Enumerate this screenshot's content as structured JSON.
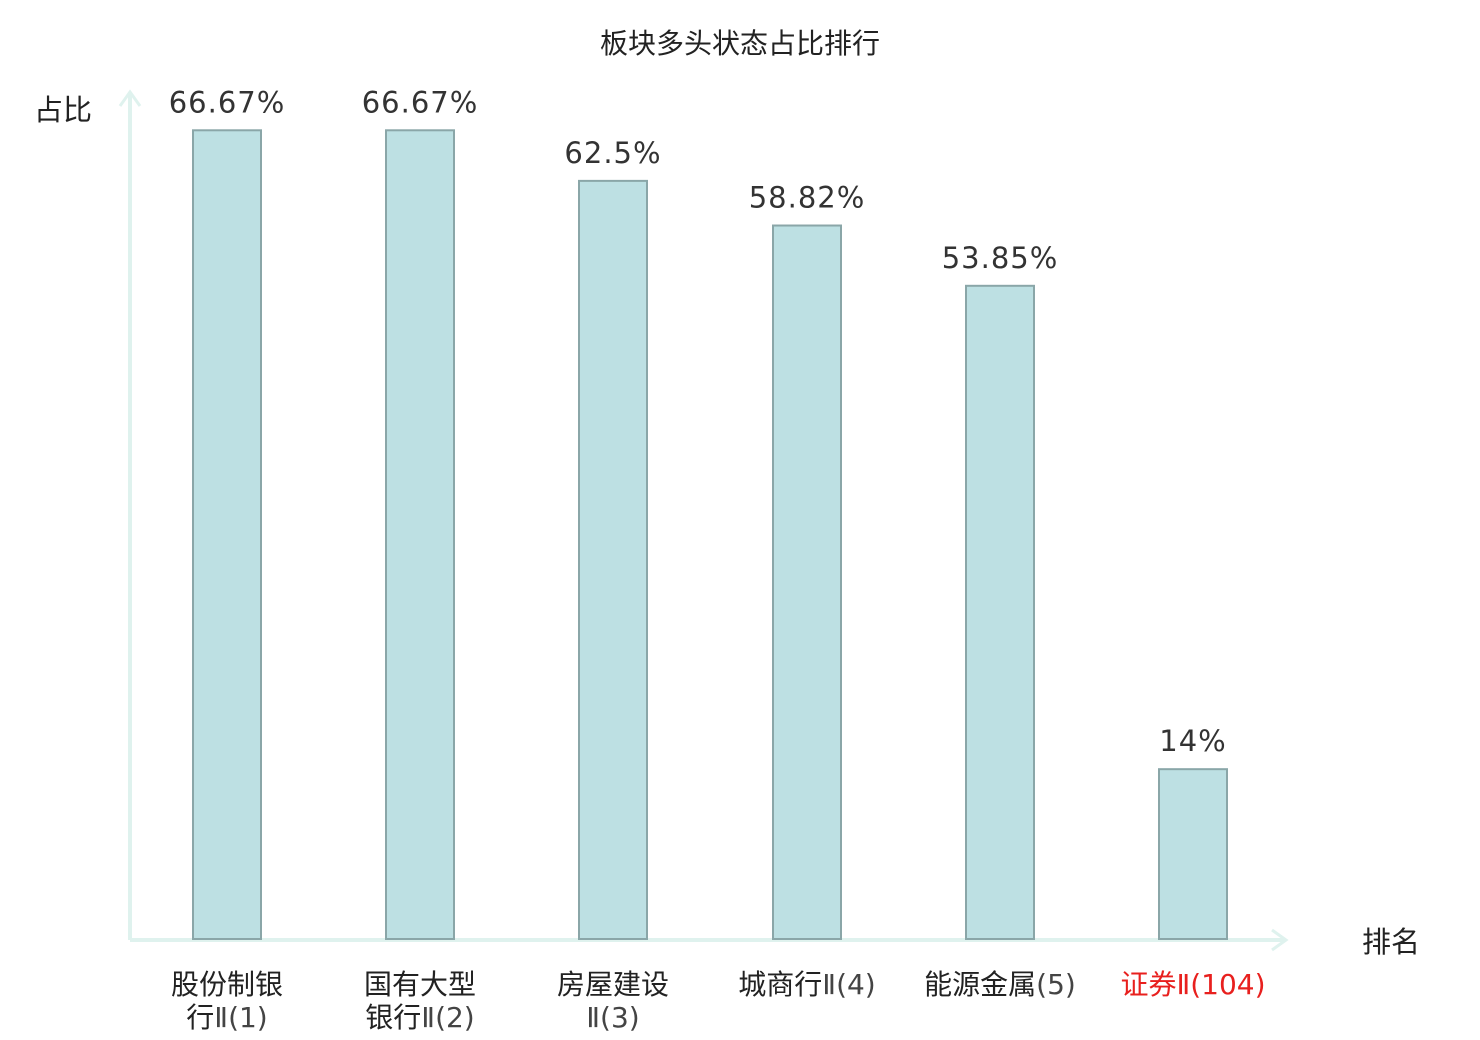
{
  "chart_data": {
    "type": "bar",
    "title": "板块多头状态占比排行",
    "ylabel": "占比",
    "xlabel": "排名",
    "ylim": [
      0,
      70
    ],
    "grid": false,
    "value_suffix": "%",
    "categories": [
      {
        "lines": [
          {
            "main": "股份制银",
            "suffix": ""
          },
          {
            "main": "行",
            "suffix": "Ⅱ(1)"
          }
        ]
      },
      {
        "lines": [
          {
            "main": "国有大型",
            "suffix": ""
          },
          {
            "main": "银行",
            "suffix": "Ⅱ(2)"
          }
        ]
      },
      {
        "lines": [
          {
            "main": "房屋建设",
            "suffix": ""
          },
          {
            "main": "",
            "suffix": "Ⅱ(3)"
          }
        ]
      },
      {
        "lines": [
          {
            "main": "城商行",
            "suffix": "Ⅱ(4)"
          }
        ]
      },
      {
        "lines": [
          {
            "main": "能源金属",
            "suffix": "(5)"
          }
        ]
      },
      {
        "lines": [
          {
            "main": "证券",
            "suffix": "Ⅱ(104)"
          }
        ],
        "highlight": true
      }
    ],
    "values": [
      66.67,
      66.67,
      62.5,
      58.82,
      53.85,
      14
    ],
    "colors": {
      "bar_fill": "#bde0e3",
      "bar_stroke": "#8aa6a8",
      "axis": "#dff2ee",
      "highlight_label": "#e8201e",
      "text": "#222222"
    }
  }
}
